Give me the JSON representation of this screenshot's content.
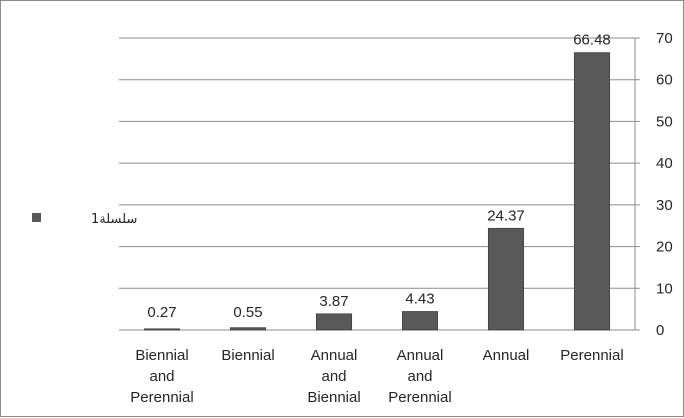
{
  "chart_data": {
    "type": "bar",
    "categories": [
      [
        "Biennial",
        "and",
        "Perennial"
      ],
      [
        "Biennial"
      ],
      [
        "Annual",
        "and",
        "Biennial"
      ],
      [
        "Annual",
        "and",
        "Perennial"
      ],
      [
        "Annual"
      ],
      [
        "Perennial"
      ]
    ],
    "series": [
      {
        "name": "سلسلة1",
        "values": [
          0.27,
          0.55,
          3.87,
          4.43,
          24.37,
          66.48
        ]
      }
    ],
    "data_labels": [
      "0.27",
      "0.55",
      "3.87",
      "4.43",
      "24.37",
      "66.48"
    ],
    "y_ticks": [
      "0",
      "10",
      "20",
      "30",
      "40",
      "50",
      "60",
      "70"
    ],
    "ylim": [
      0,
      70
    ],
    "y_axis_position": "right",
    "grid": true,
    "legend_position": "left",
    "title": "",
    "xlabel": "",
    "ylabel": "",
    "colors": {
      "bar": "#595959",
      "bar_edge": "#404040",
      "grid": "#8c8c8c",
      "text": "#262626"
    }
  }
}
